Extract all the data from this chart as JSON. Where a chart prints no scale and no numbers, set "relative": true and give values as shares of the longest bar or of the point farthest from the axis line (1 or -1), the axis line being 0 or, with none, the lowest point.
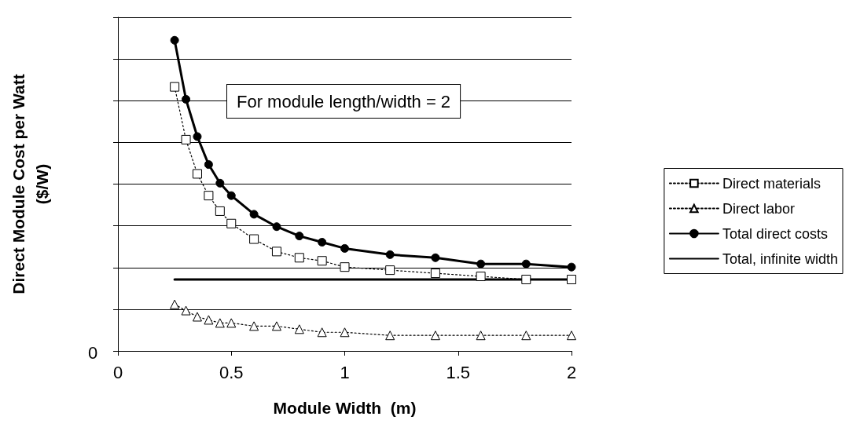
{
  "chart_data": {
    "type": "line",
    "relative": true,
    "xlabel": "Module Width  (m)",
    "ylabel": "Direct Module Cost per Watt\n($/W)",
    "annotations": [
      "For module length/width = 2",
      "0"
    ],
    "x": [
      0.25,
      0.3,
      0.35,
      0.4,
      0.45,
      0.5,
      0.6,
      0.7,
      0.8,
      0.9,
      1.0,
      1.2,
      1.4,
      1.6,
      1.8,
      2.0
    ],
    "xlim": [
      0,
      2
    ],
    "xticks": [
      0,
      0.5,
      1,
      1.5,
      2
    ],
    "grid": "y",
    "legend": "right",
    "series": [
      {
        "name": "Direct materials",
        "color": "#000000",
        "marker": "square",
        "line_style": "dotted",
        "values": [
          0.85,
          0.68,
          0.57,
          0.5,
          0.45,
          0.41,
          0.36,
          0.32,
          0.3,
          0.29,
          0.27,
          0.26,
          0.25,
          0.24,
          0.23,
          0.23
        ]
      },
      {
        "name": "Direct labor",
        "color": "#000000",
        "marker": "triangle",
        "line_style": "dotted",
        "values": [
          0.15,
          0.13,
          0.11,
          0.1,
          0.09,
          0.09,
          0.08,
          0.08,
          0.07,
          0.06,
          0.06,
          0.05,
          0.05,
          0.05,
          0.05,
          0.05
        ]
      },
      {
        "name": "Total direct costs",
        "color": "#000000",
        "marker": "circle",
        "line_style": "solid",
        "values": [
          1.0,
          0.81,
          0.69,
          0.6,
          0.54,
          0.5,
          0.44,
          0.4,
          0.37,
          0.35,
          0.33,
          0.31,
          0.3,
          0.28,
          0.28,
          0.27
        ]
      },
      {
        "name": "Total, infinite width",
        "color": "#000000",
        "marker": "none",
        "line_style": "solid",
        "x": [
          0.25,
          2.0
        ],
        "values": [
          0.23,
          0.23
        ]
      }
    ]
  }
}
